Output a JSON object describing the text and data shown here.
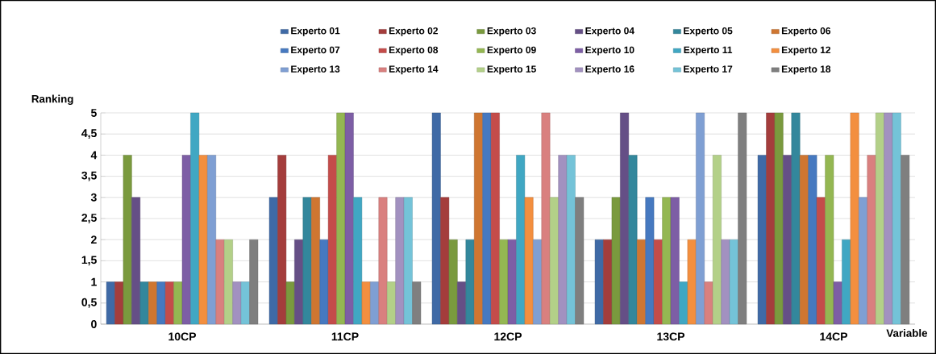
{
  "chart_data": {
    "type": "bar",
    "xlabel": "Variable",
    "ylabel": "Ranking",
    "categories": [
      "10CP",
      "11CP",
      "12CP",
      "13CP",
      "14CP"
    ],
    "ylim": [
      0,
      5
    ],
    "yticks": [
      0,
      {
        "value": 0.5,
        "label": "0,5"
      },
      1,
      {
        "value": 1.5,
        "label": "1,5"
      },
      2,
      {
        "value": 2.5,
        "label": "2,5"
      },
      3,
      {
        "value": 3.5,
        "label": "3,5"
      },
      4,
      {
        "value": 4.5,
        "label": "4,5"
      },
      5
    ],
    "grid": "y",
    "legend": "top",
    "series": [
      {
        "name": "Experto 01",
        "color": "#3f6aa6",
        "values": [
          1,
          3,
          5,
          2,
          4
        ]
      },
      {
        "name": "Experto 02",
        "color": "#a43d3c",
        "values": [
          1,
          4,
          3,
          2,
          5
        ]
      },
      {
        "name": "Experto 03",
        "color": "#7a9a3e",
        "values": [
          4,
          1,
          2,
          3,
          5
        ]
      },
      {
        "name": "Experto 04",
        "color": "#654f86",
        "values": [
          3,
          2,
          1,
          5,
          4
        ]
      },
      {
        "name": "Experto 05",
        "color": "#33879c",
        "values": [
          1,
          3,
          2,
          4,
          5
        ]
      },
      {
        "name": "Experto 06",
        "color": "#cf7631",
        "values": [
          1,
          3,
          5,
          2,
          4
        ]
      },
      {
        "name": "Experto 07",
        "color": "#4679c0",
        "values": [
          1,
          2,
          5,
          3,
          4
        ]
      },
      {
        "name": "Experto 08",
        "color": "#c44c4a",
        "values": [
          1,
          4,
          5,
          2,
          3
        ]
      },
      {
        "name": "Experto 09",
        "color": "#94b752",
        "values": [
          1,
          5,
          2,
          3,
          4
        ]
      },
      {
        "name": "Experto 10",
        "color": "#7d5ea5",
        "values": [
          4,
          5,
          2,
          3,
          1
        ]
      },
      {
        "name": "Experto 11",
        "color": "#40a7c3",
        "values": [
          5,
          3,
          4,
          1,
          2
        ]
      },
      {
        "name": "Experto 12",
        "color": "#f38f3f",
        "values": [
          4,
          1,
          3,
          2,
          5
        ]
      },
      {
        "name": "Experto 13",
        "color": "#7f9fd3",
        "values": [
          4,
          1,
          2,
          5,
          3
        ]
      },
      {
        "name": "Experto 14",
        "color": "#d9807f",
        "values": [
          2,
          3,
          5,
          1,
          4
        ]
      },
      {
        "name": "Experto 15",
        "color": "#b3d088",
        "values": [
          2,
          1,
          3,
          4,
          5
        ]
      },
      {
        "name": "Experto 16",
        "color": "#a291c0",
        "values": [
          1,
          3,
          4,
          2,
          5
        ]
      },
      {
        "name": "Experto 17",
        "color": "#74c3d8",
        "values": [
          1,
          3,
          4,
          2,
          5
        ]
      },
      {
        "name": "Experto 18",
        "color": "#7f7f7f",
        "values": [
          2,
          1,
          3,
          5,
          4
        ]
      }
    ]
  }
}
